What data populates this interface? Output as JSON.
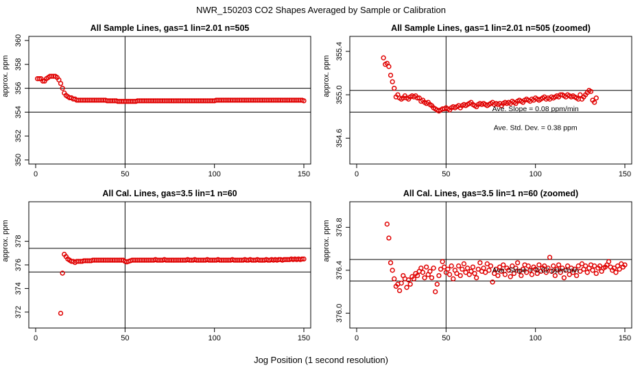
{
  "figure": {
    "title": "NWR_150203  CO2 Shapes Averaged by Sample or Calibration",
    "xlabel": "Jog Position (1 second resolution)"
  },
  "chart_data": [
    {
      "id": "p1",
      "type": "scatter",
      "title": "All Sample Lines, gas=1 lin=2.01 n=505",
      "xlabel": "",
      "ylabel": "approx. ppm",
      "xlim": [
        0,
        150
      ],
      "ylim": [
        350,
        360
      ],
      "xticks": [
        0,
        50,
        100,
        150
      ],
      "yticks": [
        350,
        352,
        354,
        356,
        358,
        360
      ],
      "vline": 50,
      "hlines": [
        354,
        356
      ],
      "annotations": [],
      "series": [
        {
          "name": "sample",
          "x_start": 1,
          "x_step": 1,
          "y": [
            356.8,
            356.8,
            356.8,
            356.6,
            356.6,
            356.8,
            356.9,
            357.0,
            357.0,
            357.0,
            357.0,
            356.9,
            356.7,
            356.4,
            356.0,
            355.6,
            355.4,
            355.3,
            355.2,
            355.2,
            355.1,
            355.1,
            355.0,
            355.0,
            355.0,
            355.0,
            355.0,
            355.0,
            355.0,
            355.0,
            355.0,
            355.0,
            355.0,
            355.0,
            355.0,
            355.0,
            355.0,
            355.0,
            355.0,
            354.95,
            354.95,
            354.95,
            354.95,
            354.95,
            354.95,
            354.9,
            354.9,
            354.9,
            354.9,
            354.9,
            354.9,
            354.9,
            354.9,
            354.9,
            354.9,
            354.9,
            354.95,
            354.95,
            354.95,
            354.95,
            354.95,
            354.95,
            354.95,
            354.95,
            354.95,
            354.95,
            354.95,
            354.95,
            354.95,
            354.95,
            354.95,
            354.95,
            354.95,
            354.95,
            354.95,
            354.95,
            354.95,
            354.95,
            354.95,
            354.95,
            354.95,
            354.95,
            354.95,
            354.95,
            354.95,
            354.95,
            354.95,
            354.95,
            354.95,
            354.95,
            354.95,
            354.95,
            354.95,
            354.95,
            354.95,
            354.95,
            354.95,
            354.95,
            354.95,
            354.95,
            355.0,
            355.0,
            355.0,
            355.0,
            355.0,
            355.0,
            355.0,
            355.0,
            355.0,
            355.0,
            355.0,
            355.0,
            355.0,
            355.0,
            355.0,
            355.0,
            355.0,
            355.0,
            355.0,
            355.0,
            355.0,
            355.0,
            355.0,
            355.0,
            355.0,
            355.0,
            355.0,
            355.0,
            355.0,
            355.0,
            355.0,
            355.0,
            355.0,
            355.0,
            355.0,
            355.0,
            355.0,
            355.0,
            355.0,
            355.0,
            355.0,
            355.0,
            355.0,
            355.0,
            355.0,
            355.0,
            355.0,
            355.0,
            355.0,
            354.95
          ]
        }
      ]
    },
    {
      "id": "p2",
      "type": "scatter",
      "title": "All Sample Lines, gas=1 lin=2.01 n=505 (zoomed)",
      "xlabel": "",
      "ylabel": "approx. ppm",
      "xlim": [
        0,
        150
      ],
      "ylim": [
        354.4,
        355.5
      ],
      "xticks": [
        0,
        50,
        100,
        150
      ],
      "yticks": [
        354.6,
        355.0,
        355.4
      ],
      "ytick_labels": [
        "354.6",
        "355.0",
        "355.4"
      ],
      "vline": 50,
      "hlines": [
        354.84,
        355.04
      ],
      "annotations": [
        "Ave. Slope =  0.08  ppm/min",
        "Ave. Std. Dev. =  0.38  ppm"
      ],
      "series": [
        {
          "name": "sample",
          "x_start": 15,
          "x_step": 1,
          "y": [
            355.34,
            355.28,
            355.29,
            355.26,
            355.18,
            355.12,
            355.06,
            354.98,
            355.0,
            354.97,
            354.96,
            354.97,
            354.99,
            354.97,
            354.96,
            354.98,
            354.99,
            354.98,
            354.99,
            354.97,
            354.97,
            354.94,
            354.95,
            354.93,
            354.92,
            354.93,
            354.91,
            354.9,
            354.88,
            354.87,
            354.86,
            354.85,
            354.86,
            354.87,
            354.87,
            354.88,
            354.87,
            354.86,
            354.88,
            354.89,
            354.88,
            354.89,
            354.9,
            354.88,
            354.9,
            354.91,
            354.9,
            354.91,
            354.92,
            354.93,
            354.91,
            354.9,
            354.89,
            354.91,
            354.92,
            354.91,
            354.92,
            354.91,
            354.9,
            354.91,
            354.92,
            354.93,
            354.91,
            354.92,
            354.91,
            354.92,
            354.9,
            354.92,
            354.93,
            354.92,
            354.93,
            354.92,
            354.94,
            354.93,
            354.92,
            354.94,
            354.95,
            354.94,
            354.93,
            354.95,
            354.96,
            354.95,
            354.94,
            354.96,
            354.95,
            354.97,
            354.96,
            354.95,
            354.96,
            354.97,
            354.98,
            354.96,
            354.97,
            354.96,
            354.98,
            354.97,
            354.98,
            354.99,
            354.98,
            355.0,
            355.0,
            354.99,
            354.98,
            355.0,
            354.99,
            354.98,
            354.99,
            354.98,
            354.97,
            354.96,
            355.0,
            354.96,
            354.98,
            355.0,
            355.02,
            355.04,
            355.03,
            354.95,
            354.93,
            354.97
          ]
        }
      ]
    },
    {
      "id": "p3",
      "type": "scatter",
      "title": "All Cal. Lines, gas=3.5 lin=1 n=60",
      "xlabel": "",
      "ylabel": "approx. ppm",
      "xlim": [
        0,
        150
      ],
      "ylim": [
        371,
        381
      ],
      "xticks": [
        0,
        50,
        100,
        150
      ],
      "yticks": [
        372,
        374,
        376,
        378
      ],
      "ytick_labels": [
        "372",
        "374",
        "376",
        "378"
      ],
      "vline": 50,
      "hlines": [
        375.4,
        377.4
      ],
      "annotations": [],
      "series": [
        {
          "name": "cal",
          "x_start": 14,
          "x_step": 1,
          "y": [
            371.9,
            375.3,
            376.9,
            376.7,
            376.5,
            376.4,
            376.3,
            376.3,
            376.2,
            376.3,
            376.3,
            376.3,
            376.3,
            376.35,
            376.35,
            376.35,
            376.35,
            376.35,
            376.4,
            376.4,
            376.4,
            376.4,
            376.4,
            376.4,
            376.4,
            376.4,
            376.4,
            376.4,
            376.4,
            376.4,
            376.4,
            376.4,
            376.4,
            376.4,
            376.4,
            376.4,
            376.3,
            376.25,
            376.3,
            376.35,
            376.4,
            376.4,
            376.4,
            376.4,
            376.4,
            376.4,
            376.4,
            376.4,
            376.4,
            376.4,
            376.4,
            376.4,
            376.4,
            376.45,
            376.4,
            376.4,
            376.4,
            376.4,
            376.45,
            376.4,
            376.4,
            376.4,
            376.4,
            376.4,
            376.4,
            376.4,
            376.4,
            376.4,
            376.4,
            376.4,
            376.4,
            376.45,
            376.4,
            376.4,
            376.4,
            376.45,
            376.4,
            376.4,
            376.4,
            376.4,
            376.4,
            376.4,
            376.45,
            376.4,
            376.4,
            376.4,
            376.4,
            376.4,
            376.45,
            376.4,
            376.4,
            376.4,
            376.4,
            376.4,
            376.4,
            376.4,
            376.45,
            376.4,
            376.4,
            376.4,
            376.4,
            376.4,
            376.4,
            376.45,
            376.4,
            376.4,
            376.45,
            376.4,
            376.4,
            376.4,
            376.45,
            376.4,
            376.4,
            376.4,
            376.4,
            376.45,
            376.4,
            376.4,
            376.45,
            376.4,
            376.45,
            376.4,
            376.45,
            376.45,
            376.4,
            376.45,
            376.45,
            376.45,
            376.45,
            376.5,
            376.45,
            376.5,
            376.45,
            376.5,
            376.45,
            376.5,
            376.5
          ]
        }
      ]
    },
    {
      "id": "p4",
      "type": "scatter",
      "title": "All Cal. Lines, gas=3.5 lin=1 n=60 (zoomed)",
      "xlabel": "",
      "ylabel": "approx. ppm",
      "xlim": [
        0,
        150
      ],
      "ylim": [
        375.9,
        377.0
      ],
      "xticks": [
        0,
        50,
        100,
        150
      ],
      "yticks": [
        376.0,
        376.4,
        376.8
      ],
      "ytick_labels": [
        "376.0",
        "376.4",
        "376.8"
      ],
      "vline": 50,
      "hlines": [
        376.3,
        376.5
      ],
      "annotations": [
        "Ave. Slope =  0.02  ppm/min"
      ],
      "series": [
        {
          "name": "cal",
          "x_start": 17,
          "x_step": 1,
          "y": [
            376.83,
            376.7,
            376.47,
            376.4,
            376.32,
            376.25,
            376.27,
            376.21,
            376.28,
            376.35,
            376.32,
            376.24,
            376.31,
            376.27,
            376.34,
            376.32,
            376.37,
            376.35,
            376.39,
            376.42,
            376.38,
            376.33,
            376.43,
            376.36,
            376.39,
            376.33,
            376.42,
            376.2,
            376.27,
            376.35,
            376.41,
            376.48,
            376.43,
            376.38,
            376.41,
            376.36,
            376.44,
            376.32,
            376.4,
            376.37,
            376.44,
            376.35,
            376.41,
            376.46,
            376.38,
            376.42,
            376.36,
            376.39,
            376.43,
            376.37,
            376.33,
            376.41,
            376.47,
            376.39,
            376.42,
            376.38,
            376.46,
            376.4,
            376.44,
            376.29,
            376.37,
            376.41,
            376.35,
            376.43,
            376.39,
            376.45,
            376.36,
            376.42,
            376.4,
            376.34,
            376.44,
            376.37,
            376.42,
            376.47,
            376.39,
            376.35,
            376.41,
            376.45,
            376.38,
            376.44,
            376.4,
            376.36,
            376.43,
            376.41,
            376.37,
            376.45,
            376.39,
            376.42,
            376.44,
            376.38,
            376.42,
            376.52,
            376.39,
            376.44,
            376.35,
            376.41,
            376.45,
            376.38,
            376.42,
            376.33,
            376.4,
            376.44,
            376.36,
            376.42,
            376.38,
            376.41,
            376.35,
            376.44,
            376.39,
            376.46,
            376.41,
            376.44,
            376.38,
            376.42,
            376.45,
            376.4,
            376.44,
            376.37,
            376.42,
            376.44,
            376.39,
            376.42,
            376.43,
            376.45,
            376.48,
            376.43,
            376.4,
            376.42,
            376.38,
            376.44,
            376.41,
            376.46,
            376.43,
            376.45
          ]
        }
      ]
    }
  ]
}
